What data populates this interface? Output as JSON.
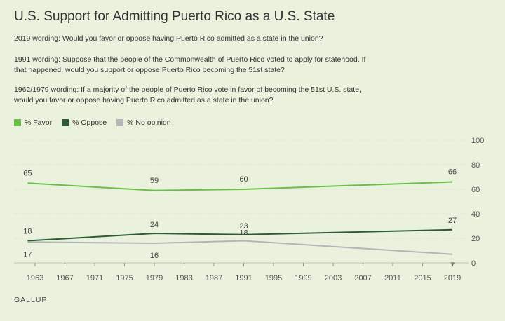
{
  "title": "U.S. Support for Admitting Puerto Rico as a U.S. State",
  "notes": [
    "2019 wording: Would you favor or oppose having Puerto Rico admitted as a state in the union?",
    "1991 wording: Suppose that the people of the Commonwealth of Puerto Rico voted to apply for statehood. If that happened, would you support or oppose Puerto Rico becoming the 51st state?",
    "1962/1979 wording: If a majority of the people of Puerto Rico vote in favor of becoming the 51st U.S. state, would you favor or oppose having Puerto Rico admitted as a state in the union?"
  ],
  "source": "GALLUP",
  "chart_data": {
    "type": "line",
    "x": [
      1962,
      1979,
      1991,
      2019
    ],
    "series": [
      {
        "name": "% Favor",
        "color": "#6abf4b",
        "values": [
          65,
          59,
          60,
          66
        ],
        "labels": [
          "65",
          "59",
          "60",
          "66"
        ]
      },
      {
        "name": "% Oppose",
        "color": "#2f5a33",
        "values": [
          18,
          24,
          23,
          27
        ],
        "labels": [
          "18",
          "24",
          "23",
          "27"
        ]
      },
      {
        "name": "% No opinion",
        "color": "#b5b5b5",
        "values": [
          17,
          16,
          18,
          7
        ],
        "labels": [
          "17",
          "16",
          "18",
          "7"
        ]
      }
    ],
    "xticks": [
      "1963",
      "1967",
      "1971",
      "1975",
      "1979",
      "1983",
      "1987",
      "1991",
      "1995",
      "1999",
      "2003",
      "2007",
      "2011",
      "2015",
      "2019"
    ],
    "xlim": [
      1962,
      2019
    ],
    "yticks": [
      "0",
      "20",
      "40",
      "60",
      "80",
      "100"
    ],
    "ylim": [
      0,
      100
    ],
    "grid": "horizontal",
    "legend": "top-left"
  }
}
